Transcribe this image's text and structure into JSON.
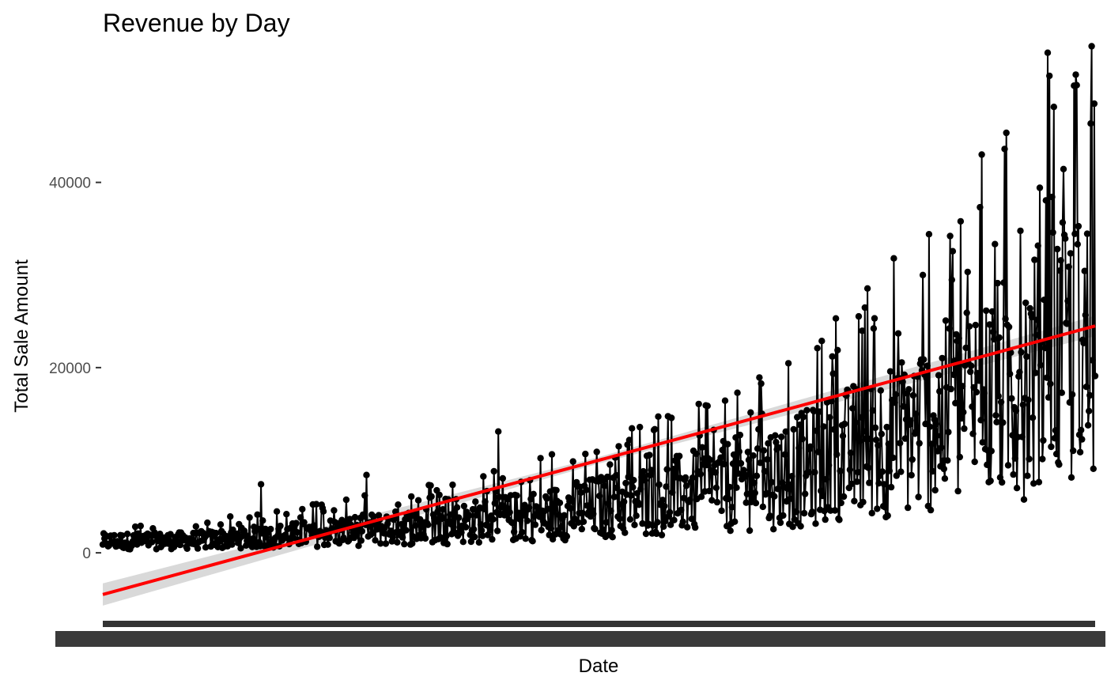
{
  "chart_data": {
    "type": "line",
    "title": "Revenue by Day",
    "xlabel": "Date",
    "ylabel": "Total Sale Amount",
    "ylim": [
      -5200,
      55000
    ],
    "yticks": [
      0,
      20000,
      40000
    ],
    "grid": false,
    "legend": "none",
    "series": [
      {
        "style": "line+points",
        "color": "#000000",
        "n_points": 1130,
        "values_note_free_estimates": true,
        "anchor_points": [
          {
            "i": 0,
            "y": 1500
          },
          {
            "i": 100,
            "y": 1600
          },
          {
            "i": 200,
            "y": 2200
          },
          {
            "i": 300,
            "y": 3000
          },
          {
            "i": 400,
            "y": 3800
          },
          {
            "i": 500,
            "y": 5000
          },
          {
            "i": 600,
            "y": 6500
          },
          {
            "i": 700,
            "y": 8500
          },
          {
            "i": 800,
            "y": 11000
          },
          {
            "i": 900,
            "y": 15000
          },
          {
            "i": 1000,
            "y": 20000
          },
          {
            "i": 1080,
            "y": 25000
          },
          {
            "i": 1129,
            "y": 27000
          }
        ],
        "peaks": [
          {
            "i": 1075,
            "y": 54000
          },
          {
            "i": 1108,
            "y": 50500
          },
          {
            "i": 1128,
            "y": 48500
          },
          {
            "i": 1000,
            "y": 43000
          },
          {
            "i": 900,
            "y": 31800
          },
          {
            "i": 830,
            "y": 21200
          },
          {
            "i": 750,
            "y": 15000
          },
          {
            "i": 450,
            "y": 13100
          },
          {
            "i": 300,
            "y": 8400
          },
          {
            "i": 180,
            "y": 7400
          }
        ]
      },
      {
        "style": "trend-line",
        "color": "#ff0000",
        "band_color": "#cccccc",
        "y_start": -4500,
        "y_end": 24500
      }
    ]
  }
}
